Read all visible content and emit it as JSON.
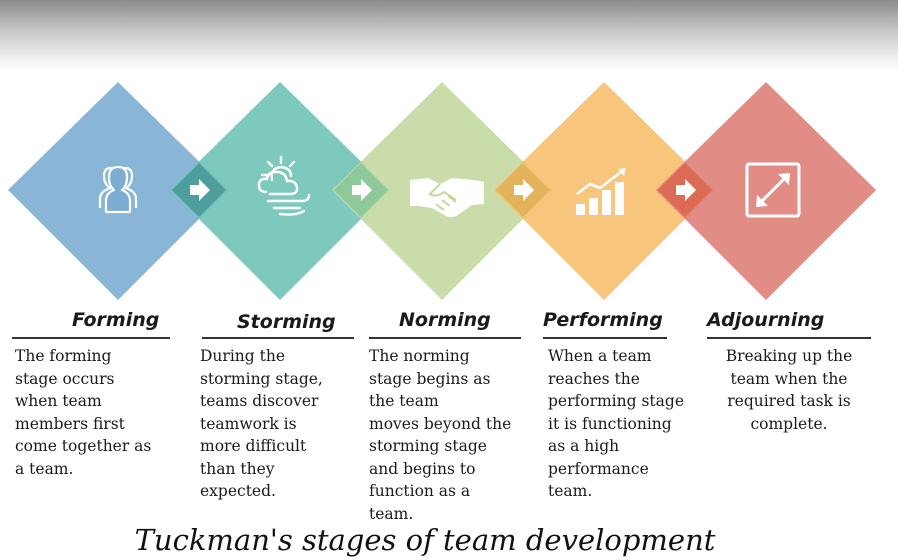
{
  "stages": [
    {
      "title": "Forming",
      "icon": "group-icon",
      "color": "#7cadd3",
      "description": "The forming\nstage occurs\nwhen team\nmembers first\ncome together as\na team."
    },
    {
      "title": "Storming",
      "icon": "storm-cloud-icon",
      "color": "#6fc3b7",
      "description": "During the\nstorming stage,\nteams discover\nteamwork is\nmore difficult\nthan they\nexpected."
    },
    {
      "title": "Norming",
      "icon": "handshake-icon",
      "color": "#c4d8a0",
      "description": "The norming\nstage begins as\nthe team\nmoves beyond the\nstorming stage\nand begins to\nfunction as a\nteam."
    },
    {
      "title": "Performing",
      "icon": "growth-chart-icon",
      "color": "#f6bf6e",
      "description": "When a team\nreaches the\nperforming stage\nit is functioning\nas a high\nperformance\nteam."
    },
    {
      "title": "Adjourning",
      "icon": "expand-icon",
      "color": "#de7f78",
      "description": "Breaking up the\nteam when the\nrequired task is\ncomplete."
    }
  ],
  "arrow_colors": [
    "#4f9e9e",
    "#8dc99a",
    "#e3b35c",
    "#dc6a55"
  ],
  "caption": "Tuckman's stages of team development"
}
